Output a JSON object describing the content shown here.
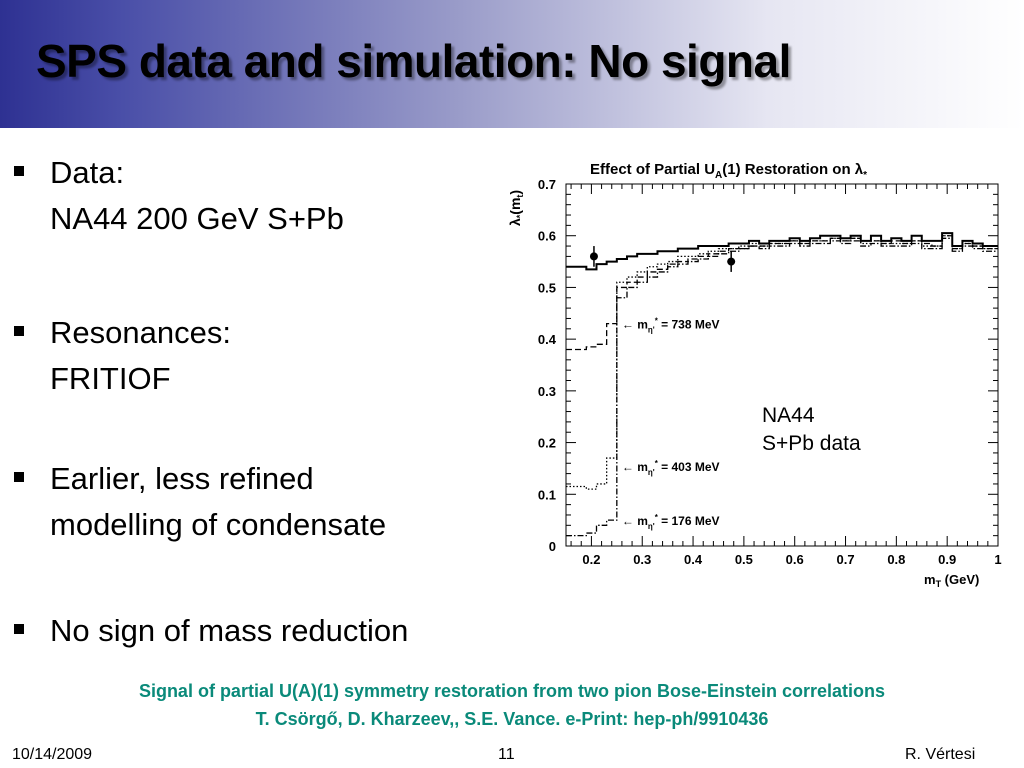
{
  "slide": {
    "title": "SPS data and simulation: No signal",
    "bullets": [
      {
        "line1": "Data:",
        "line2": "NA44 200 GeV S+Pb"
      },
      {
        "line1": "Resonances:",
        "line2": "FRITIOF"
      },
      {
        "line1": "Earlier, less refined",
        "line2": "modelling of condensate"
      },
      {
        "line1": "No sign of mass reduction",
        "line2": ""
      }
    ],
    "plot_annotation_line1": "NA44",
    "plot_annotation_line2": "S+Pb data",
    "citation_line1": "Signal of partial U(A)(1) symmetry restoration from two pion Bose-Einstein correlations",
    "citation_line2": "T. Csörgő, D. Kharzeev,, S.E. Vance.  e-Print: hep-ph/9910436",
    "footer_date": "10/14/2009",
    "footer_page": "11",
    "footer_author": "R. Vértesi",
    "title_color": "#000000",
    "citation_color": "#0a8a7a"
  },
  "chart_data": {
    "type": "line",
    "title_prefix": "Effect of Partial U",
    "title_sub": "A",
    "title_suffix": "(1) Restoration on λ",
    "title_star": "*",
    "ylabel_prefix": "λ",
    "ylabel_star": "*",
    "ylabel_mid": "(m",
    "ylabel_sub": "t",
    "ylabel_suffix": ")",
    "xlabel_prefix": "m",
    "xlabel_sub": "T",
    "xlabel_suffix": " (GeV)",
    "xlim": [
      0.15,
      1.0
    ],
    "ylim": [
      0,
      0.7
    ],
    "xticks": [
      "0.2",
      "0.3",
      "0.4",
      "0.5",
      "0.6",
      "0.7",
      "0.8",
      "0.9",
      "1"
    ],
    "xtick_values": [
      0.2,
      0.3,
      0.4,
      0.5,
      0.6,
      0.7,
      0.8,
      0.9,
      1.0
    ],
    "yticks": [
      "0",
      "0.1",
      "0.2",
      "0.3",
      "0.4",
      "0.5",
      "0.6",
      "0.7"
    ],
    "ytick_values": [
      0,
      0.1,
      0.2,
      0.3,
      0.4,
      0.5,
      0.6,
      0.7
    ],
    "grid": false,
    "annotations": [
      {
        "prefix": "← m",
        "sub": "η'",
        "sup": "*",
        "suffix": " = 738 MeV",
        "x": 0.26,
        "y": 0.43
      },
      {
        "prefix": "← m",
        "sub": "η'",
        "sup": "*",
        "suffix": " = 403 MeV",
        "x": 0.26,
        "y": 0.155
      },
      {
        "prefix": "← m",
        "sub": "η'",
        "sup": "*",
        "suffix": " = 176 MeV",
        "x": 0.26,
        "y": 0.05
      }
    ],
    "data_points": {
      "x": [
        0.205,
        0.475
      ],
      "y": [
        0.56,
        0.55
      ],
      "yerr": [
        0.02,
        0.02
      ]
    },
    "series": [
      {
        "style": "solid",
        "x": [
          0.15,
          0.17,
          0.19,
          0.21,
          0.23,
          0.25,
          0.27,
          0.29,
          0.31,
          0.33,
          0.35,
          0.37,
          0.39,
          0.41,
          0.43,
          0.45,
          0.47,
          0.49,
          0.51,
          0.53,
          0.55,
          0.57,
          0.59,
          0.61,
          0.63,
          0.65,
          0.67,
          0.69,
          0.71,
          0.73,
          0.75,
          0.77,
          0.79,
          0.81,
          0.83,
          0.85,
          0.87,
          0.89,
          0.91,
          0.93,
          0.95,
          0.97,
          0.99,
          1.0
        ],
        "y": [
          0.54,
          0.54,
          0.535,
          0.545,
          0.55,
          0.555,
          0.56,
          0.565,
          0.565,
          0.57,
          0.57,
          0.575,
          0.575,
          0.58,
          0.58,
          0.58,
          0.585,
          0.585,
          0.59,
          0.585,
          0.59,
          0.59,
          0.595,
          0.59,
          0.595,
          0.6,
          0.6,
          0.595,
          0.6,
          0.59,
          0.6,
          0.59,
          0.595,
          0.59,
          0.6,
          0.59,
          0.59,
          0.605,
          0.58,
          0.59,
          0.585,
          0.58,
          0.58,
          0.58
        ]
      },
      {
        "style": "dashed",
        "x": [
          0.15,
          0.17,
          0.19,
          0.21,
          0.23,
          0.25,
          0.27,
          0.29,
          0.31,
          0.33,
          0.35,
          0.37,
          0.39,
          0.41,
          0.43,
          0.45,
          0.47,
          0.49,
          0.51,
          0.53,
          0.55,
          0.57,
          0.59,
          0.61,
          0.63,
          0.65,
          0.67,
          0.69,
          0.71,
          0.73,
          0.75,
          0.77,
          0.79,
          0.81,
          0.83,
          0.85,
          0.87,
          0.89,
          0.91,
          0.93,
          0.95,
          0.97,
          0.99,
          1.0
        ],
        "y": [
          0.38,
          0.38,
          0.385,
          0.39,
          0.43,
          0.5,
          0.51,
          0.52,
          0.53,
          0.535,
          0.545,
          0.55,
          0.555,
          0.56,
          0.565,
          0.57,
          0.575,
          0.575,
          0.58,
          0.58,
          0.585,
          0.585,
          0.59,
          0.585,
          0.59,
          0.59,
          0.595,
          0.59,
          0.595,
          0.59,
          0.59,
          0.585,
          0.59,
          0.585,
          0.59,
          0.585,
          0.58,
          0.6,
          0.575,
          0.585,
          0.58,
          0.575,
          0.575,
          0.575
        ]
      },
      {
        "style": "dotted",
        "x": [
          0.15,
          0.17,
          0.19,
          0.21,
          0.23,
          0.25,
          0.27,
          0.29,
          0.31,
          0.33,
          0.35,
          0.37,
          0.39,
          0.41,
          0.43,
          0.45,
          0.47,
          0.49,
          0.51,
          0.53,
          0.55,
          0.57,
          0.59,
          0.61,
          0.63,
          0.65,
          0.67,
          0.69,
          0.71,
          0.73,
          0.75,
          0.77,
          0.79,
          0.81,
          0.83,
          0.85,
          0.87,
          0.89,
          0.91,
          0.93,
          0.95,
          0.97,
          0.99,
          1.0
        ],
        "y": [
          0.115,
          0.115,
          0.11,
          0.12,
          0.17,
          0.51,
          0.52,
          0.53,
          0.54,
          0.545,
          0.55,
          0.56,
          0.56,
          0.565,
          0.57,
          0.575,
          0.575,
          0.58,
          0.585,
          0.58,
          0.585,
          0.585,
          0.59,
          0.585,
          0.59,
          0.59,
          0.595,
          0.59,
          0.595,
          0.585,
          0.59,
          0.585,
          0.585,
          0.585,
          0.59,
          0.58,
          0.58,
          0.6,
          0.575,
          0.585,
          0.58,
          0.575,
          0.575,
          0.575
        ]
      },
      {
        "style": "dashdot",
        "x": [
          0.15,
          0.17,
          0.19,
          0.21,
          0.23,
          0.25,
          0.27,
          0.29,
          0.31,
          0.33,
          0.35,
          0.37,
          0.39,
          0.41,
          0.43,
          0.45,
          0.47,
          0.49,
          0.51,
          0.53,
          0.55,
          0.57,
          0.59,
          0.61,
          0.63,
          0.65,
          0.67,
          0.69,
          0.71,
          0.73,
          0.75,
          0.77,
          0.79,
          0.81,
          0.83,
          0.85,
          0.87,
          0.89,
          0.91,
          0.93,
          0.95,
          0.97,
          0.99,
          1.0
        ],
        "y": [
          0.02,
          0.02,
          0.025,
          0.04,
          0.05,
          0.48,
          0.5,
          0.51,
          0.52,
          0.53,
          0.54,
          0.545,
          0.55,
          0.555,
          0.56,
          0.565,
          0.57,
          0.575,
          0.58,
          0.575,
          0.58,
          0.58,
          0.585,
          0.58,
          0.585,
          0.585,
          0.59,
          0.585,
          0.59,
          0.58,
          0.585,
          0.58,
          0.58,
          0.58,
          0.585,
          0.575,
          0.575,
          0.595,
          0.57,
          0.58,
          0.575,
          0.57,
          0.57,
          0.57
        ]
      }
    ]
  }
}
